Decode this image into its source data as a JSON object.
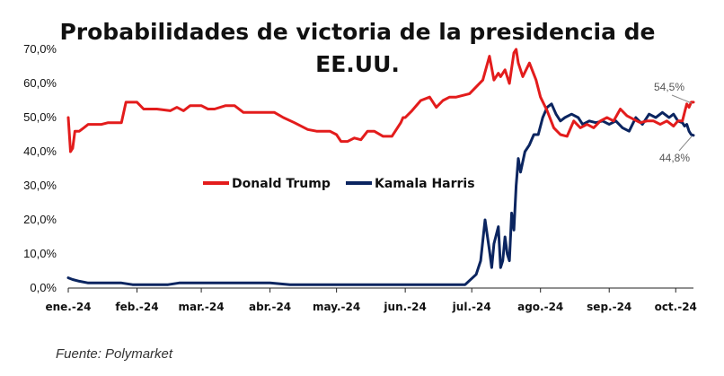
{
  "chart_data": {
    "type": "line",
    "title": [
      "Probabilidades de victoria de la presidencia de",
      "EE.UU."
    ],
    "source": "Fuente: Polymarket",
    "ylim": [
      0,
      70
    ],
    "yticks": [
      0,
      10,
      20,
      30,
      40,
      50,
      60,
      70
    ],
    "ytick_labels": [
      "0,0%",
      "10,0%",
      "20,0%",
      "30,0%",
      "40,0%",
      "50,0%",
      "60,0%",
      "70,0%"
    ],
    "xlim": [
      "2024-01-01",
      "2024-10-09"
    ],
    "xticks": [
      "2024-01-01",
      "2024-02-01",
      "2024-03-01",
      "2024-04-01",
      "2024-05-01",
      "2024-06-01",
      "2024-07-01",
      "2024-08-01",
      "2024-09-01",
      "2024-10-01"
    ],
    "xtick_labels": [
      "ene.-24",
      "feb.-24",
      "mar.-24",
      "abr.-24",
      "may.-24",
      "jun.-24",
      "jul.-24",
      "ago.-24",
      "sep.-24",
      "oct.-24"
    ],
    "grid": false,
    "legend_position": "center",
    "colors": {
      "trump": "#e31c1c",
      "harris": "#0b2560"
    },
    "series": [
      {
        "name": "Donald Trump",
        "color": "#e31c1c",
        "x": [
          "2024-01-01",
          "2024-01-02",
          "2024-01-03",
          "2024-01-04",
          "2024-01-06",
          "2024-01-08",
          "2024-01-10",
          "2024-01-13",
          "2024-01-16",
          "2024-01-19",
          "2024-01-22",
          "2024-01-25",
          "2024-01-27",
          "2024-02-01",
          "2024-02-04",
          "2024-02-10",
          "2024-02-16",
          "2024-02-19",
          "2024-02-22",
          "2024-02-25",
          "2024-03-01",
          "2024-03-04",
          "2024-03-07",
          "2024-03-12",
          "2024-03-16",
          "2024-03-20",
          "2024-03-25",
          "2024-03-30",
          "2024-04-03",
          "2024-04-07",
          "2024-04-12",
          "2024-04-18",
          "2024-04-22",
          "2024-04-28",
          "2024-05-01",
          "2024-05-03",
          "2024-05-06",
          "2024-05-09",
          "2024-05-12",
          "2024-05-15",
          "2024-05-18",
          "2024-05-22",
          "2024-05-26",
          "2024-05-30",
          "2024-05-31",
          "2024-06-01",
          "2024-06-04",
          "2024-06-08",
          "2024-06-12",
          "2024-06-15",
          "2024-06-18",
          "2024-06-21",
          "2024-06-24",
          "2024-06-27",
          "2024-06-30",
          "2024-07-03",
          "2024-07-06",
          "2024-07-09",
          "2024-07-11",
          "2024-07-13",
          "2024-07-14",
          "2024-07-16",
          "2024-07-18",
          "2024-07-20",
          "2024-07-21",
          "2024-07-22",
          "2024-07-24",
          "2024-07-27",
          "2024-07-30",
          "2024-08-01",
          "2024-08-04",
          "2024-08-07",
          "2024-08-10",
          "2024-08-13",
          "2024-08-16",
          "2024-08-19",
          "2024-08-22",
          "2024-08-25",
          "2024-08-28",
          "2024-08-31",
          "2024-09-03",
          "2024-09-06",
          "2024-09-09",
          "2024-09-12",
          "2024-09-15",
          "2024-09-18",
          "2024-09-21",
          "2024-09-24",
          "2024-09-27",
          "2024-09-30",
          "2024-10-02",
          "2024-10-04",
          "2024-10-05",
          "2024-10-06",
          "2024-10-07",
          "2024-10-08",
          "2024-10-09"
        ],
        "values": [
          50,
          40,
          41,
          46,
          46,
          47,
          48,
          48,
          48,
          48.5,
          48.5,
          48.5,
          54.5,
          54.5,
          52.5,
          52.5,
          52,
          53,
          52,
          53.5,
          53.5,
          52.5,
          52.5,
          53.5,
          53.5,
          51.5,
          51.5,
          51.5,
          51.5,
          50,
          48.5,
          46.5,
          46,
          46,
          45,
          43,
          43,
          44,
          43.5,
          46,
          46,
          44.5,
          44.5,
          48.5,
          50,
          50,
          52,
          55,
          56,
          53,
          55,
          56,
          56,
          56.5,
          57,
          59,
          61,
          68,
          61,
          63,
          62,
          64,
          60,
          69,
          70,
          66,
          62,
          66,
          61,
          56,
          52,
          47,
          45,
          44.5,
          49,
          47,
          48,
          47,
          49,
          50,
          49,
          52.5,
          50.5,
          49.5,
          48.5,
          49,
          49,
          48,
          49,
          47.5,
          49,
          49,
          51.5,
          54,
          53,
          54.5,
          54.5
        ]
      },
      {
        "name": "Kamala Harris",
        "color": "#0b2560",
        "x": [
          "2024-01-01",
          "2024-01-03",
          "2024-01-06",
          "2024-01-10",
          "2024-01-15",
          "2024-01-20",
          "2024-01-25",
          "2024-01-30",
          "2024-02-05",
          "2024-02-10",
          "2024-02-15",
          "2024-02-20",
          "2024-03-01",
          "2024-03-10",
          "2024-03-20",
          "2024-04-01",
          "2024-04-10",
          "2024-04-20",
          "2024-05-01",
          "2024-05-10",
          "2024-05-20",
          "2024-06-01",
          "2024-06-10",
          "2024-06-20",
          "2024-06-28",
          "2024-07-03",
          "2024-07-05",
          "2024-07-07",
          "2024-07-09",
          "2024-07-10",
          "2024-07-11",
          "2024-07-13",
          "2024-07-14",
          "2024-07-15",
          "2024-07-16",
          "2024-07-17",
          "2024-07-18",
          "2024-07-19",
          "2024-07-20",
          "2024-07-21",
          "2024-07-22",
          "2024-07-23",
          "2024-07-25",
          "2024-07-27",
          "2024-07-29",
          "2024-07-31",
          "2024-08-02",
          "2024-08-04",
          "2024-08-06",
          "2024-08-08",
          "2024-08-10",
          "2024-08-12",
          "2024-08-15",
          "2024-08-18",
          "2024-08-20",
          "2024-08-23",
          "2024-08-26",
          "2024-08-29",
          "2024-09-01",
          "2024-09-04",
          "2024-09-07",
          "2024-09-10",
          "2024-09-13",
          "2024-09-16",
          "2024-09-19",
          "2024-09-22",
          "2024-09-25",
          "2024-09-28",
          "2024-09-30",
          "2024-10-02",
          "2024-10-04",
          "2024-10-05",
          "2024-10-06",
          "2024-10-07",
          "2024-10-08",
          "2024-10-09"
        ],
        "values": [
          3,
          2.5,
          2,
          1.5,
          1.5,
          1.5,
          1.5,
          1,
          1,
          1,
          1,
          1.5,
          1.5,
          1.5,
          1.5,
          1.5,
          1,
          1,
          1,
          1,
          1,
          1,
          1,
          1,
          1,
          4,
          8,
          20,
          11,
          6,
          13,
          18,
          6,
          8,
          15,
          10,
          8,
          22,
          17,
          30,
          38,
          34,
          40,
          42,
          45,
          45,
          50,
          53,
          54,
          51,
          49,
          50,
          51,
          50,
          48,
          49,
          48.5,
          49,
          48,
          49,
          47,
          46,
          50,
          48,
          51,
          50,
          51.5,
          50,
          51,
          49,
          48.5,
          47.5,
          48,
          46,
          45,
          44.8
        ]
      }
    ],
    "legend": [
      {
        "label": "Donald Trump",
        "color": "#e31c1c"
      },
      {
        "label": "Kamala Harris",
        "color": "#0b2560"
      }
    ],
    "annotations": [
      {
        "text": "54,5%",
        "series": "Donald Trump"
      },
      {
        "text": "44,8%",
        "series": "Kamala Harris"
      }
    ]
  }
}
